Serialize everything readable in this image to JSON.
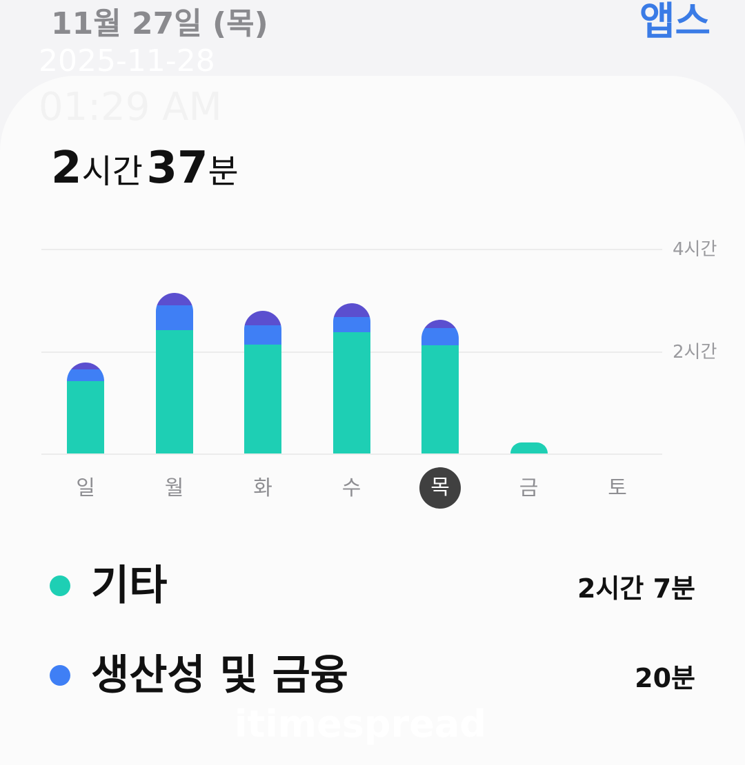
{
  "header": {
    "date": "11월 27일 (목)",
    "apps_label": "앱스"
  },
  "watermark": {
    "date": "2025-11-28",
    "time": "01:29 AM",
    "brand": "itimespread"
  },
  "total": {
    "hours": "2",
    "hours_unit": "시간",
    "minutes": "37",
    "minutes_unit": "분"
  },
  "colors": {
    "other": "#1ecfb4",
    "productivity": "#3f7ff5",
    "third": "#5b4fcf",
    "accent": "#3a7be6"
  },
  "chart_data": {
    "type": "bar",
    "stacked": true,
    "unit": "minutes",
    "categories": [
      "일",
      "월",
      "화",
      "수",
      "목",
      "금",
      "토"
    ],
    "selected": "목",
    "series": [
      {
        "name": "기타",
        "color": "#1ecfb4",
        "values": [
          85,
          145,
          128,
          142,
          127,
          13,
          0
        ]
      },
      {
        "name": "생산성 및 금융",
        "color": "#3f7ff5",
        "values": [
          14,
          29,
          22,
          18,
          20,
          0,
          0
        ]
      },
      {
        "color": "#5b4fcf",
        "values": [
          8,
          14,
          17,
          16,
          10,
          0,
          0
        ]
      }
    ],
    "ylim": [
      0,
      240
    ],
    "yticks": [
      {
        "value": 120,
        "label": "2시간"
      },
      {
        "value": 240,
        "label": "4시간"
      }
    ],
    "grid": true
  },
  "legend": [
    {
      "name": "기타",
      "value": "2시간 7분",
      "color": "#1ecfb4"
    },
    {
      "name": "생산성 및 금융",
      "value": "20분",
      "color": "#3f7ff5"
    }
  ]
}
